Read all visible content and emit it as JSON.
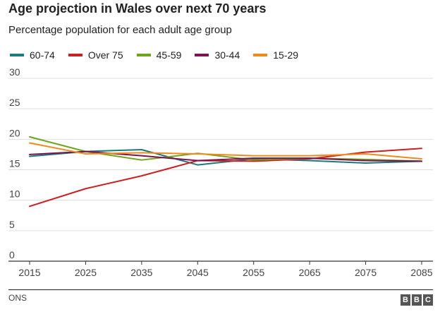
{
  "header": {
    "title": "Age projection in Wales over next 70 years",
    "subtitle": "Percentage population for each adult age group"
  },
  "footer": {
    "source": "ONS",
    "logo_letters": [
      "B",
      "B",
      "C"
    ]
  },
  "chart_data": {
    "type": "line",
    "title": "Age projection in Wales over next 70 years",
    "subtitle": "Percentage population for each adult age group",
    "xlabel": "",
    "ylabel": "",
    "x": [
      2015,
      2025,
      2035,
      2045,
      2055,
      2065,
      2075,
      2085
    ],
    "x_ticks": [
      "2015",
      "2025",
      "2035",
      "2045",
      "2055",
      "2065",
      "2075",
      "2085"
    ],
    "y_ticks": [
      "0",
      "5",
      "10",
      "15",
      "20",
      "25",
      "30"
    ],
    "ylim": [
      0,
      30
    ],
    "grid": true,
    "legend_position": "top",
    "series": [
      {
        "name": "60-74",
        "color": "#1b7a7a",
        "values": [
          17.2,
          18.0,
          18.3,
          15.8,
          16.8,
          16.5,
          16.1,
          16.4
        ]
      },
      {
        "name": "Over 75",
        "color": "#cc1f1f",
        "values": [
          9.0,
          11.9,
          14.0,
          16.5,
          16.4,
          16.8,
          17.9,
          18.5
        ]
      },
      {
        "name": "45-59",
        "color": "#6ea51a",
        "values": [
          20.4,
          18.0,
          16.6,
          17.7,
          16.6,
          16.9,
          16.7,
          16.4
        ]
      },
      {
        "name": "30-44",
        "color": "#7d1450",
        "values": [
          17.5,
          18.0,
          17.3,
          16.5,
          16.9,
          16.9,
          16.5,
          16.4
        ]
      },
      {
        "name": "15-29",
        "color": "#ef8a1c",
        "values": [
          19.4,
          17.6,
          17.8,
          17.6,
          17.3,
          17.3,
          17.6,
          16.8
        ]
      }
    ]
  }
}
